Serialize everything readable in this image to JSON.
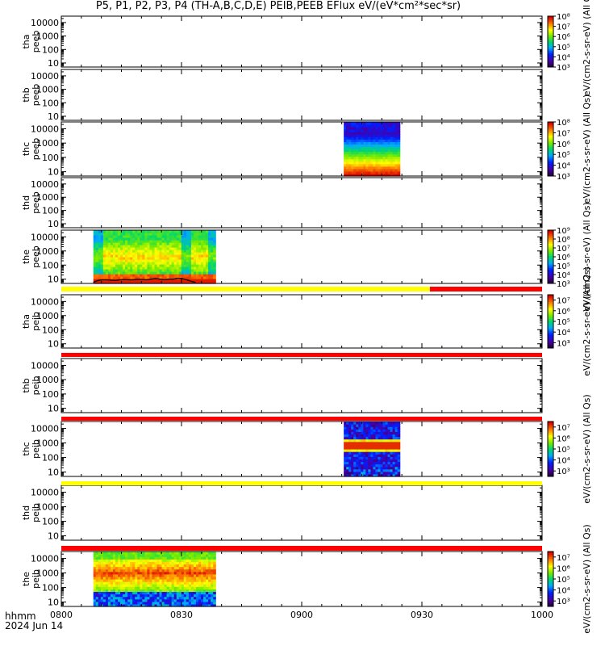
{
  "chart_data": {
    "type": "heatmap",
    "title": "P5, P1, P2, P3, P4 (TH-A,B,C,D,E) PEIB,PEEB EFlux eV/(eV*cm²*sec*sr)",
    "x_tick_labels": [
      "0800",
      "0830",
      "0900",
      "0930",
      "1000"
    ],
    "x_ticks_minutes": [
      0,
      30,
      60,
      90,
      120
    ],
    "x_range_minutes": [
      0,
      120
    ],
    "footer": {
      "line1": "hhmm",
      "line2": "2024 Jun 14"
    },
    "y_tick_labels": [
      "10",
      "100",
      "1000",
      "10000"
    ],
    "y_scale": "log",
    "y_range": [
      5,
      30000
    ],
    "colorbar_unit": "eV/(cm2-s-sr-eV)",
    "colorbar_unit_suffix": "(All Qs)",
    "panels": [
      {
        "label1": "tha",
        "label2": "peeb",
        "colorbar": true,
        "cbar_ticks": [
          "10³",
          "10⁴",
          "10⁵",
          "10⁶",
          "10⁷",
          "10⁸"
        ],
        "cbar_range": [
          3,
          8
        ],
        "spectra": []
      },
      {
        "label1": "thb",
        "label2": "peeb",
        "colorbar": false,
        "spectra": []
      },
      {
        "label1": "thc",
        "label2": "peeb",
        "colorbar": true,
        "cbar_ticks": [
          "10³",
          "10⁴",
          "10⁵",
          "10⁶",
          "10⁷",
          "10⁸"
        ],
        "cbar_range": [
          3,
          8
        ],
        "spectra": [
          {
            "t_start": 70.5,
            "t_end": 84.5,
            "profile": "monotonic"
          }
        ]
      },
      {
        "label1": "thd",
        "label2": "peeb",
        "colorbar": false,
        "spectra": []
      },
      {
        "label1": "the",
        "label2": "peeb",
        "colorbar": true,
        "cbar_ticks": [
          "10³",
          "10⁴",
          "10⁵",
          "10⁶",
          "10⁷",
          "10⁸",
          "10⁹"
        ],
        "cbar_range": [
          3,
          9
        ],
        "spectra": [
          {
            "t_start": 8.0,
            "t_end": 38.5,
            "profile": "plasmasheet"
          }
        ],
        "trace_y": [
          6,
          8,
          9,
          9,
          8.5,
          8,
          9,
          9.5,
          9,
          9,
          10,
          9.5,
          9,
          10,
          11,
          10,
          9,
          10,
          10,
          12,
          11,
          9,
          7,
          6
        ],
        "trace_t_range": [
          8.0,
          33.5
        ]
      },
      {
        "label1": "tha",
        "label2": "peib",
        "colorbar": true,
        "cbar_ticks": [
          "10³",
          "10⁴",
          "10⁵",
          "10⁶",
          "10⁷"
        ],
        "cbar_range": [
          2.5,
          7.5
        ],
        "spectra": []
      },
      {
        "label1": "thb",
        "label2": "peib",
        "colorbar": false,
        "spectra": []
      },
      {
        "label1": "thc",
        "label2": "peib",
        "colorbar": true,
        "cbar_ticks": [
          "10³",
          "10⁴",
          "10⁵",
          "10⁶",
          "10⁷"
        ],
        "cbar_range": [
          2.5,
          7.5
        ],
        "spectra": [
          {
            "t_start": 70.5,
            "t_end": 84.5,
            "profile": "ionband"
          }
        ]
      },
      {
        "label1": "thd",
        "label2": "peib",
        "colorbar": false,
        "spectra": []
      },
      {
        "label1": "the",
        "label2": "peib",
        "colorbar": true,
        "cbar_ticks": [
          "10³",
          "10⁴",
          "10⁵",
          "10⁶",
          "10⁷"
        ],
        "cbar_range": [
          2.5,
          7.5
        ],
        "spectra": [
          {
            "t_start": 8.0,
            "t_end": 38.5,
            "profile": "ion"
          }
        ]
      }
    ],
    "status_bars": [
      {
        "after_panel": 4,
        "segments": [
          {
            "t0": 0,
            "t1": 92,
            "color": "#ffff00"
          },
          {
            "t0": 92,
            "t1": 120,
            "color": "#ff0000"
          }
        ]
      },
      {
        "after_panel": 5,
        "segments": [
          {
            "t0": 0,
            "t1": 120,
            "color": "#ff0000"
          }
        ]
      },
      {
        "after_panel": 6,
        "segments": [
          {
            "t0": 0,
            "t1": 120,
            "color": "#ff0000"
          }
        ]
      },
      {
        "after_panel": 7,
        "segments": [
          {
            "t0": 0,
            "t1": 120,
            "color": "#ffff00"
          }
        ]
      },
      {
        "after_panel": 8,
        "segments": [
          {
            "t0": 0,
            "t1": 120,
            "color": "#ff0000"
          }
        ]
      }
    ]
  }
}
